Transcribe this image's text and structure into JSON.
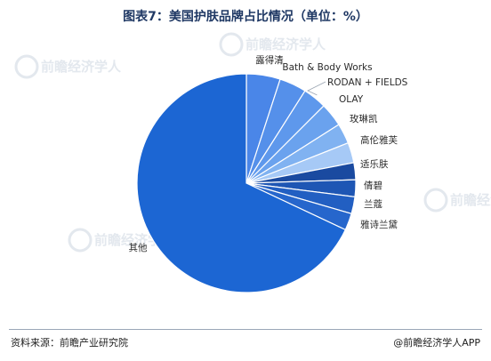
{
  "title": "图表7：美国护肤品牌占比情况（单位：%）",
  "source": "资料来源：前瞻产业研究院",
  "credit": "@前瞻经济学人APP",
  "watermark": "前瞻经济学人",
  "chart_data": {
    "type": "pie",
    "title": "图表7：美国护肤品牌占比情况（单位：%）",
    "unit": "%",
    "start": "12 o'clock",
    "direction": "clockwise",
    "slices": [
      {
        "label": "露得清",
        "value": 5.0,
        "color": "#4a86e8"
      },
      {
        "label": "Bath & Body Works",
        "value": 4.0,
        "color": "#5590ea"
      },
      {
        "label": "RODAN + FIELDS",
        "value": 3.5,
        "color": "#5e98ec"
      },
      {
        "label": "OLAY",
        "value": 3.5,
        "color": "#6aa2ee"
      },
      {
        "label": "玫琳凯",
        "value": 3.0,
        "color": "#80b2f1"
      },
      {
        "label": "高伦雅芙",
        "value": 3.0,
        "color": "#a6c9f6"
      },
      {
        "label": "适乐肤",
        "value": 2.5,
        "color": "#1a4aa0"
      },
      {
        "label": "倩碧",
        "value": 2.5,
        "color": "#1e56b4"
      },
      {
        "label": "兰蔻",
        "value": 2.5,
        "color": "#225fc2"
      },
      {
        "label": "雅诗兰黛",
        "value": 2.5,
        "color": "#2666cc"
      },
      {
        "label": "其他",
        "value": 68.0,
        "color": "#1c66d3"
      }
    ]
  }
}
